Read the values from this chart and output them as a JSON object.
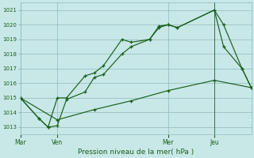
{
  "background_color": "#c8e8e8",
  "plot_bg_color": "#c8e8e8",
  "grid_color": "#90b8b8",
  "line_color": "#1a5e1a",
  "title": "Pression niveau de la mer( hPa )",
  "ylim": [
    1012.5,
    1021.5
  ],
  "yticks": [
    1013,
    1014,
    1015,
    1016,
    1017,
    1018,
    1019,
    1020,
    1021
  ],
  "day_labels": [
    "Mar",
    "Ven",
    "Mer",
    "Jeu"
  ],
  "day_positions": [
    0,
    16,
    64,
    84
  ],
  "xlim": [
    0,
    100
  ],
  "line1": {
    "x": [
      0,
      8,
      12,
      16,
      20,
      28,
      32,
      36,
      44,
      48,
      56,
      60,
      64,
      68,
      84,
      88,
      96,
      100
    ],
    "y": [
      1015.0,
      1013.6,
      1013.0,
      1015.0,
      1015.0,
      1016.5,
      1016.7,
      1017.2,
      1019.0,
      1018.8,
      1019.0,
      1019.9,
      1020.0,
      1019.8,
      1021.0,
      1020.0,
      1017.0,
      1015.7
    ]
  },
  "line2": {
    "x": [
      0,
      8,
      12,
      16,
      20,
      28,
      32,
      36,
      44,
      48,
      56,
      60,
      64,
      68,
      84,
      88,
      96,
      100
    ],
    "y": [
      1015.0,
      1013.6,
      1013.0,
      1013.1,
      1014.9,
      1015.4,
      1016.4,
      1016.6,
      1018.0,
      1018.5,
      1019.0,
      1019.8,
      1020.0,
      1019.8,
      1021.0,
      1018.5,
      1017.0,
      1015.7
    ]
  },
  "line3": {
    "x": [
      0,
      16,
      32,
      48,
      64,
      84,
      100
    ],
    "y": [
      1015.0,
      1013.5,
      1014.2,
      1014.8,
      1015.5,
      1016.2,
      1015.7
    ]
  },
  "vline_x": 84
}
